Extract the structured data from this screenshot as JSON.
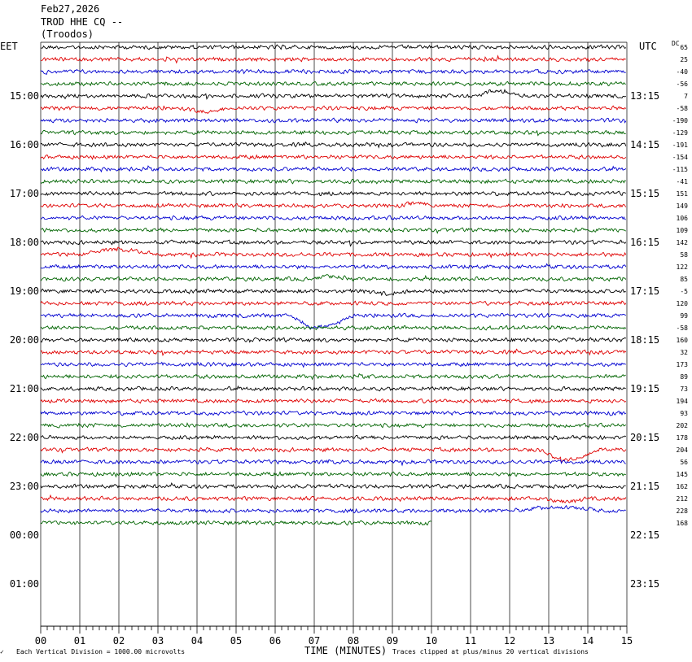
{
  "header": {
    "date": "Feb27,2026",
    "station": "TROD HHE CQ --",
    "location": "(Troodos)"
  },
  "left_zone": "EET",
  "right_zone": "UTC",
  "dc_label": "DC",
  "footer": {
    "left_note": "Each Vertical Division = 1000.00 microvolts",
    "center_label": "TIME (MINUTES)",
    "right_note": "Traces clipped at plus/minus 20 vertical divisions"
  },
  "colors": {
    "trace_cycle": [
      "#000000",
      "#e00000",
      "#0000d0",
      "#006400"
    ],
    "grid": "#000000"
  },
  "chart_data": {
    "type": "line",
    "xlabel": "TIME (MINUTES)",
    "xlim": [
      0,
      15
    ],
    "x_ticks": [
      "00",
      "01",
      "02",
      "03",
      "04",
      "05",
      "06",
      "07",
      "08",
      "09",
      "10",
      "11",
      "12",
      "13",
      "14",
      "15"
    ],
    "left_hour_labels": [
      "15:00",
      "16:00",
      "17:00",
      "18:00",
      "19:00",
      "20:00",
      "21:00",
      "22:00",
      "23:00",
      "00:00",
      "01:00"
    ],
    "right_hour_labels": [
      "13:15",
      "14:15",
      "15:15",
      "16:15",
      "17:15",
      "18:15",
      "19:15",
      "20:15",
      "21:15",
      "22:15",
      "23:15"
    ],
    "left_start_label": "EET",
    "right_start_label": "UTC",
    "dc_offsets": [
      "65",
      "25",
      "-40",
      "-56",
      "7",
      "-58",
      "-190",
      "-129",
      "-191",
      "-154",
      "-115",
      "-41",
      "151",
      "149",
      "106",
      "109",
      "142",
      "58",
      "122",
      "85",
      "-5",
      "120",
      "99",
      "-58",
      "160",
      "32",
      "173",
      "89",
      "73",
      "194",
      "93",
      "202",
      "178",
      "204",
      "56",
      "145",
      "162",
      "212",
      "228",
      "168"
    ],
    "last_trace_end_minute": 10,
    "events": [
      {
        "trace": 4,
        "start_min": 11.0,
        "end_min": 12.3,
        "amp": -6
      },
      {
        "trace": 5,
        "start_min": 3.5,
        "end_min": 4.8,
        "amp": 4
      },
      {
        "trace": 13,
        "start_min": 9.0,
        "end_min": 10.2,
        "amp": -3
      },
      {
        "trace": 17,
        "start_min": 0.8,
        "end_min": 3.0,
        "amp": -6
      },
      {
        "trace": 19,
        "start_min": 6.8,
        "end_min": 8.0,
        "amp": -3
      },
      {
        "trace": 20,
        "start_min": 8.2,
        "end_min": 9.4,
        "amp": 3
      },
      {
        "trace": 22,
        "start_min": 6.2,
        "end_min": 8.0,
        "amp": 14
      },
      {
        "trace": 33,
        "start_min": 12.6,
        "end_min": 14.3,
        "amp": 12
      },
      {
        "trace": 37,
        "start_min": 12.8,
        "end_min": 14.0,
        "amp": 4
      },
      {
        "trace": 38,
        "start_min": 11.8,
        "end_min": 14.5,
        "amp": -4
      }
    ]
  }
}
